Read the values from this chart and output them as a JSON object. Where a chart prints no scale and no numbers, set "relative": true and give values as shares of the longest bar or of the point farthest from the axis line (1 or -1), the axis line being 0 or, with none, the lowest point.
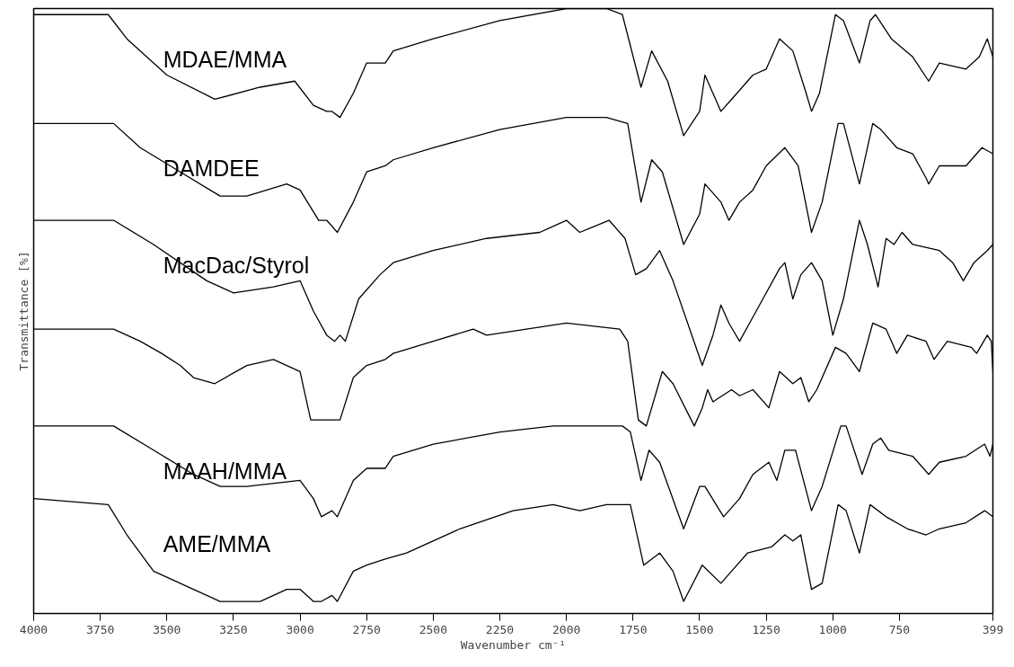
{
  "chart_data": {
    "type": "line",
    "relative": true,
    "xlabel": "Wavenumber cm⁻¹",
    "ylabel": "Transmittance [%]",
    "xlim": [
      4000,
      399
    ],
    "xticks": [
      4000,
      3750,
      3500,
      3250,
      3000,
      2750,
      2500,
      2250,
      2000,
      1750,
      1500,
      1250,
      1000,
      750,
      399
    ],
    "grid": false,
    "marker": "none",
    "line_style": "solid",
    "series": [
      {
        "name": "MDAE/MMA",
        "color": "#000000",
        "x": [
          4000,
          3720,
          3650,
          3500,
          3320,
          3150,
          3020,
          2950,
          2900,
          2880,
          2850,
          2800,
          2750,
          2680,
          2650,
          2500,
          2250,
          2000,
          1850,
          1790,
          1720,
          1680,
          1620,
          1560,
          1500,
          1480,
          1420,
          1380,
          1300,
          1250,
          1200,
          1150,
          1100,
          1080,
          1050,
          990,
          960,
          900,
          860,
          840,
          780,
          700,
          640,
          600,
          500,
          450,
          420,
          399
        ],
        "values": [
          0.99,
          0.99,
          0.95,
          0.89,
          0.85,
          0.87,
          0.88,
          0.84,
          0.83,
          0.83,
          0.82,
          0.86,
          0.91,
          0.91,
          0.93,
          0.95,
          0.98,
          1.0,
          1.0,
          0.99,
          0.87,
          0.93,
          0.88,
          0.79,
          0.83,
          0.89,
          0.83,
          0.85,
          0.89,
          0.9,
          0.95,
          0.93,
          0.86,
          0.83,
          0.86,
          0.99,
          0.98,
          0.91,
          0.98,
          0.99,
          0.95,
          0.92,
          0.88,
          0.91,
          0.9,
          0.92,
          0.95,
          0.92
        ]
      },
      {
        "name": "DAMDEE",
        "color": "#000000",
        "x": [
          4000,
          3730,
          3700,
          3600,
          3450,
          3300,
          3200,
          3050,
          3000,
          2930,
          2900,
          2860,
          2800,
          2750,
          2680,
          2650,
          2500,
          2250,
          2000,
          1850,
          1770,
          1720,
          1680,
          1640,
          1560,
          1500,
          1480,
          1420,
          1390,
          1350,
          1300,
          1250,
          1180,
          1130,
          1080,
          1040,
          980,
          960,
          900,
          850,
          820,
          760,
          700,
          650,
          640,
          600,
          500,
          440,
          399
        ],
        "values": [
          0.81,
          0.81,
          0.81,
          0.77,
          0.73,
          0.69,
          0.69,
          0.71,
          0.7,
          0.65,
          0.65,
          0.63,
          0.68,
          0.73,
          0.74,
          0.75,
          0.77,
          0.8,
          0.82,
          0.82,
          0.81,
          0.68,
          0.75,
          0.73,
          0.61,
          0.66,
          0.71,
          0.68,
          0.65,
          0.68,
          0.7,
          0.74,
          0.77,
          0.74,
          0.63,
          0.68,
          0.81,
          0.81,
          0.71,
          0.81,
          0.8,
          0.77,
          0.76,
          0.72,
          0.71,
          0.74,
          0.74,
          0.77,
          0.76
        ]
      },
      {
        "name": "MacDac/Styrol",
        "color": "#000000",
        "x": [
          4000,
          3720,
          3700,
          3550,
          3350,
          3250,
          3100,
          3000,
          2950,
          2900,
          2870,
          2850,
          2830,
          2780,
          2700,
          2650,
          2500,
          2300,
          2100,
          2000,
          1950,
          1840,
          1780,
          1740,
          1700,
          1650,
          1620,
          1600,
          1490,
          1450,
          1420,
          1390,
          1350,
          1300,
          1200,
          1180,
          1150,
          1120,
          1080,
          1040,
          1000,
          960,
          900,
          870,
          830,
          800,
          770,
          740,
          700,
          600,
          550,
          510,
          470,
          420,
          399
        ],
        "values": [
          0.65,
          0.65,
          0.65,
          0.61,
          0.55,
          0.53,
          0.54,
          0.55,
          0.5,
          0.46,
          0.45,
          0.46,
          0.45,
          0.52,
          0.56,
          0.58,
          0.6,
          0.62,
          0.63,
          0.65,
          0.63,
          0.65,
          0.62,
          0.56,
          0.57,
          0.6,
          0.57,
          0.55,
          0.41,
          0.46,
          0.51,
          0.48,
          0.45,
          0.49,
          0.57,
          0.58,
          0.52,
          0.56,
          0.58,
          0.55,
          0.46,
          0.52,
          0.65,
          0.61,
          0.54,
          0.62,
          0.61,
          0.63,
          0.61,
          0.6,
          0.58,
          0.55,
          0.58,
          0.6,
          0.61
        ]
      },
      {
        "color": "#000000",
        "x": [
          4000,
          3720,
          3700,
          3600,
          3520,
          3450,
          3400,
          3320,
          3200,
          3100,
          3050,
          3000,
          2960,
          2920,
          2880,
          2850,
          2800,
          2750,
          2680,
          2650,
          2500,
          2350,
          2300,
          2000,
          1800,
          1770,
          1730,
          1700,
          1660,
          1640,
          1600,
          1520,
          1490,
          1470,
          1450,
          1380,
          1350,
          1300,
          1240,
          1200,
          1150,
          1120,
          1090,
          1060,
          990,
          950,
          900,
          850,
          800,
          760,
          720,
          650,
          620,
          570,
          480,
          460,
          420,
          405,
          399
        ],
        "values": [
          0.47,
          0.47,
          0.47,
          0.45,
          0.43,
          0.41,
          0.39,
          0.38,
          0.41,
          0.42,
          0.41,
          0.4,
          0.32,
          0.32,
          0.32,
          0.32,
          0.39,
          0.41,
          0.42,
          0.43,
          0.45,
          0.47,
          0.46,
          0.48,
          0.47,
          0.45,
          0.32,
          0.31,
          0.37,
          0.4,
          0.38,
          0.31,
          0.34,
          0.37,
          0.35,
          0.37,
          0.36,
          0.37,
          0.34,
          0.4,
          0.38,
          0.39,
          0.35,
          0.37,
          0.44,
          0.43,
          0.4,
          0.48,
          0.47,
          0.43,
          0.46,
          0.45,
          0.42,
          0.45,
          0.44,
          0.43,
          0.46,
          0.45,
          0.4
        ]
      },
      {
        "name": "MAAH/MMA",
        "color": "#000000",
        "x": [
          4000,
          3730,
          3700,
          3550,
          3400,
          3300,
          3200,
          3000,
          2950,
          2920,
          2880,
          2860,
          2800,
          2750,
          2680,
          2650,
          2500,
          2250,
          2050,
          1980,
          1900,
          1790,
          1760,
          1720,
          1690,
          1650,
          1560,
          1500,
          1480,
          1410,
          1350,
          1300,
          1240,
          1210,
          1180,
          1140,
          1080,
          1040,
          970,
          950,
          890,
          850,
          820,
          790,
          700,
          640,
          600,
          500,
          430,
          410,
          399
        ],
        "values": [
          0.31,
          0.31,
          0.31,
          0.27,
          0.23,
          0.21,
          0.21,
          0.22,
          0.19,
          0.16,
          0.17,
          0.16,
          0.22,
          0.24,
          0.24,
          0.26,
          0.28,
          0.3,
          0.31,
          0.31,
          0.31,
          0.31,
          0.3,
          0.22,
          0.27,
          0.25,
          0.14,
          0.21,
          0.21,
          0.16,
          0.19,
          0.23,
          0.25,
          0.22,
          0.27,
          0.27,
          0.17,
          0.21,
          0.31,
          0.31,
          0.23,
          0.28,
          0.29,
          0.27,
          0.26,
          0.23,
          0.25,
          0.26,
          0.28,
          0.26,
          0.28
        ]
      },
      {
        "name": "AME/MMA",
        "color": "#000000",
        "x": [
          4000,
          3720,
          3650,
          3550,
          3450,
          3300,
          3150,
          3050,
          3000,
          2950,
          2920,
          2880,
          2860,
          2800,
          2750,
          2680,
          2600,
          2400,
          2200,
          2050,
          1950,
          1850,
          1760,
          1710,
          1650,
          1600,
          1560,
          1490,
          1420,
          1380,
          1320,
          1230,
          1180,
          1150,
          1120,
          1080,
          1040,
          980,
          950,
          900,
          860,
          800,
          720,
          650,
          600,
          500,
          430,
          399
        ],
        "values": [
          0.19,
          0.18,
          0.13,
          0.07,
          0.05,
          0.02,
          0.02,
          0.04,
          0.04,
          0.02,
          0.02,
          0.03,
          0.02,
          0.07,
          0.08,
          0.09,
          0.1,
          0.14,
          0.17,
          0.18,
          0.17,
          0.18,
          0.18,
          0.08,
          0.1,
          0.07,
          0.02,
          0.08,
          0.05,
          0.07,
          0.1,
          0.11,
          0.13,
          0.12,
          0.13,
          0.04,
          0.05,
          0.18,
          0.17,
          0.1,
          0.18,
          0.16,
          0.14,
          0.13,
          0.14,
          0.15,
          0.17,
          0.16
        ]
      }
    ]
  }
}
